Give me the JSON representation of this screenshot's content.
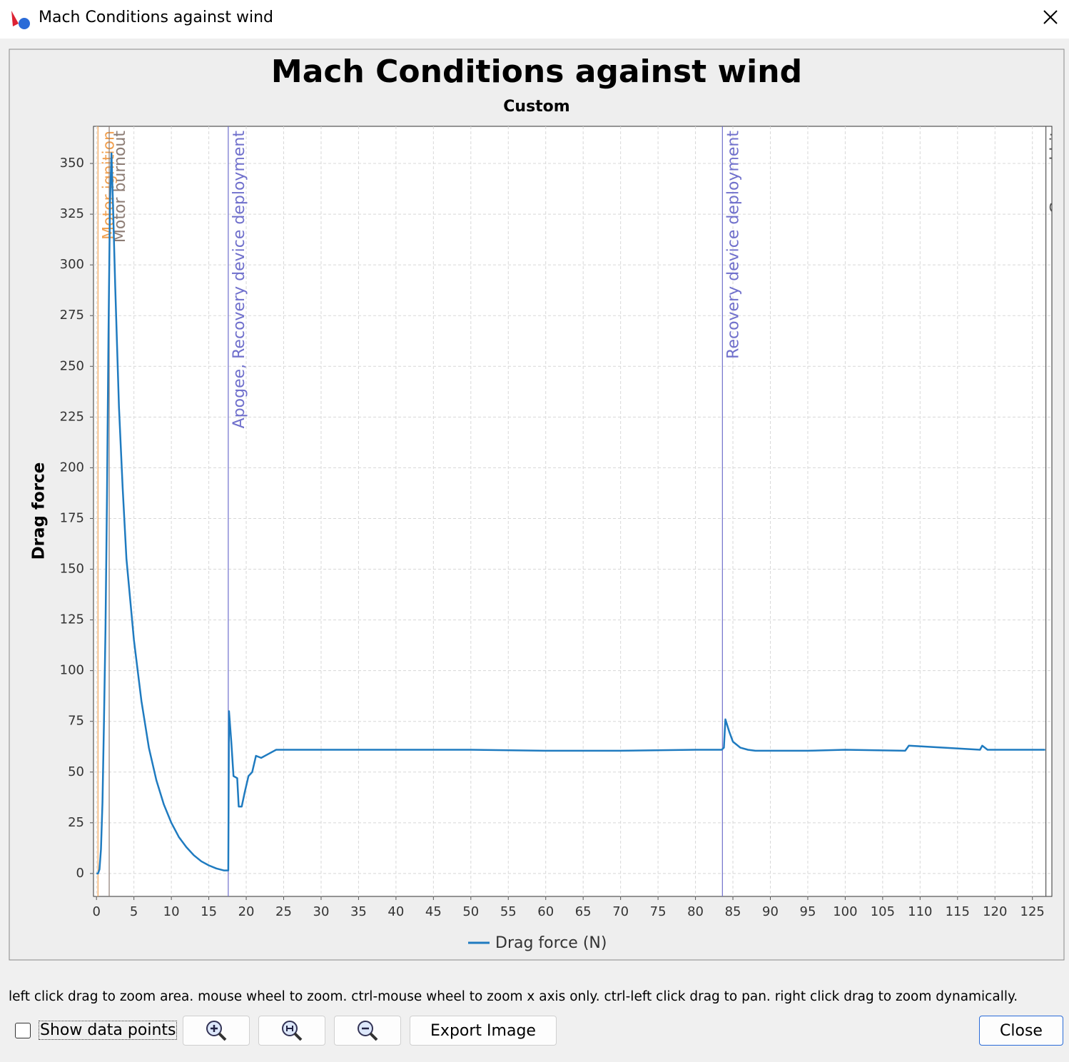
{
  "window": {
    "title": "Mach Conditions against wind"
  },
  "chart_data": {
    "type": "line",
    "title": "Mach Conditions against wind",
    "subtitle": "Custom",
    "ylabel": "Drag force",
    "x": [
      0,
      0.2,
      0.4,
      0.6,
      0.8,
      1.0,
      1.2,
      1.4,
      1.6,
      1.8,
      2.0,
      2.2,
      2.5,
      3,
      3.5,
      4,
      5,
      6,
      7,
      8,
      9,
      10,
      11,
      12,
      13,
      14,
      15,
      16,
      17,
      17.6,
      17.7,
      18,
      18.3,
      18.8,
      19,
      19.4,
      19.8,
      20.3,
      20.8,
      21.3,
      22,
      23,
      24,
      25,
      30,
      40,
      50,
      60,
      70,
      80,
      83.5,
      83.8,
      84,
      84.5,
      85,
      86,
      87,
      88,
      95,
      100,
      108,
      108.5,
      118,
      118.3,
      119,
      126.7
    ],
    "series": [
      {
        "name": "Drag force (N)",
        "color": "#1f7bc0",
        "values": [
          0,
          0,
          2,
          12,
          35,
          75,
          120,
          185,
          265,
          330,
          355,
          330,
          290,
          230,
          190,
          155,
          115,
          85,
          62,
          46,
          34,
          25,
          18,
          13,
          9,
          6,
          4,
          2.5,
          1.5,
          1.5,
          80,
          65,
          48,
          47,
          33,
          33,
          40,
          48,
          50,
          58,
          57,
          59,
          61,
          61,
          61,
          61,
          61,
          60.5,
          60.5,
          61,
          61,
          62,
          76,
          70,
          65,
          62,
          61,
          60.5,
          60.5,
          61,
          60.5,
          63,
          61,
          63,
          61,
          61
        ]
      }
    ],
    "events": [
      {
        "x": 0.2,
        "label": "Motor ignition",
        "color": "#f0a050"
      },
      {
        "x": 1.7,
        "label": "Motor burnout",
        "color": "#8c7c74"
      },
      {
        "x": 17.6,
        "label": "Apogee, Recovery device deployment",
        "color": "#7070cc"
      },
      {
        "x": 83.6,
        "label": "Recovery device deployment",
        "color": "#7070cc"
      },
      {
        "x": 126.8,
        "label": "Ground hit",
        "color": "#555555"
      }
    ],
    "xlim": [
      -0.4,
      127.6
    ],
    "ylim": [
      -11.3,
      368.3
    ],
    "xticks": [
      0,
      5,
      10,
      15,
      20,
      25,
      30,
      35,
      40,
      45,
      50,
      55,
      60,
      65,
      70,
      75,
      80,
      85,
      90,
      95,
      100,
      105,
      110,
      115,
      120,
      125
    ],
    "yticks": [
      0,
      25,
      50,
      75,
      100,
      125,
      150,
      175,
      200,
      225,
      250,
      275,
      300,
      325,
      350
    ],
    "grid": true
  },
  "hint": "left click drag to zoom area. mouse wheel to zoom. ctrl-mouse wheel to zoom x axis only. ctrl-left click drag to pan.  right click drag to zoom dynamically.",
  "controls": {
    "show_points": "Show data points",
    "export": "Export Image",
    "close": "Close"
  }
}
